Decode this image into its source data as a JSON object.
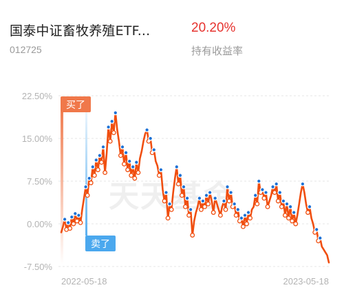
{
  "header": {
    "fund_name": "国泰中证畜牧养殖ETF...",
    "fund_code": "012725",
    "return_value": "20.20%",
    "return_label": "持有收益率"
  },
  "watermark": "天天基金",
  "markers": {
    "buy": "买了",
    "sell": "卖了"
  },
  "colors": {
    "line": "#f04e0f",
    "buy_dot": "#f04e0f",
    "sell_dot": "#1e72d6",
    "return": "#e6322e",
    "buy_tag": "#f0784a",
    "sell_tag": "#4ba8ee"
  },
  "chart_data": {
    "type": "line",
    "y_ticks": [
      "22.50%",
      "15.00%",
      "7.50%",
      "0.00%",
      "-7.50%"
    ],
    "x_labels": [
      "2022-05-18",
      "2023-05-18"
    ],
    "ylim": [
      -7.5,
      22.5
    ],
    "series": [
      {
        "values": [
          -1.5,
          -0.5,
          0.8,
          -1.0,
          0.2,
          -0.8,
          1.2,
          0.0,
          1.8,
          0.5,
          1.5,
          0.2,
          2.5,
          4.5,
          6.5,
          5.0,
          8.0,
          7.2,
          10.0,
          8.5,
          11.2,
          9.5,
          12.0,
          10.8,
          13.5,
          9.0,
          12.5,
          17.0,
          14.5,
          18.0,
          16.0,
          19.5,
          16.5,
          14.5,
          12.0,
          13.5,
          10.5,
          12.5,
          9.5,
          11.0,
          8.5,
          10.0,
          8.0,
          10.8,
          9.0,
          11.5,
          12.8,
          14.5,
          15.8,
          16.5,
          14.5,
          15.0,
          12.5,
          13.0,
          11.0,
          10.2,
          8.5,
          9.5,
          6.0,
          4.0,
          5.5,
          1.0,
          3.5,
          2.5,
          5.5,
          8.0,
          10.0,
          7.0,
          8.5,
          5.0,
          6.5,
          3.0,
          4.5,
          1.5,
          2.5,
          -2.0,
          0.5,
          2.0,
          3.0,
          4.5,
          2.5,
          4.0,
          3.0,
          5.0,
          3.5,
          5.5,
          4.0,
          2.0,
          4.5,
          3.5,
          2.5,
          1.5,
          3.0,
          4.0,
          2.5,
          6.5,
          4.0,
          5.5,
          3.0,
          3.5,
          1.5,
          2.5,
          0.5,
          1.0,
          -0.5,
          1.5,
          0.0,
          2.0,
          1.0,
          2.5,
          3.0,
          5.0,
          3.5,
          7.5,
          5.5,
          6.0,
          4.5,
          5.5,
          3.0,
          4.0,
          5.0,
          6.5,
          5.5,
          7.0,
          4.0,
          5.5,
          3.0,
          4.0,
          1.5,
          3.5,
          1.0,
          3.0,
          0.5,
          2.0,
          0.0,
          1.5,
          3.5,
          5.5,
          7.0,
          5.5,
          3.5,
          2.0,
          3.0,
          1.0,
          0.0,
          -1.5,
          -1.0,
          -3.0,
          -2.5,
          -4.0,
          -4.5,
          -5.0,
          -5.5,
          -6.8
        ]
      }
    ],
    "trades": {
      "buy_index": 0,
      "sell_index": 20
    }
  }
}
